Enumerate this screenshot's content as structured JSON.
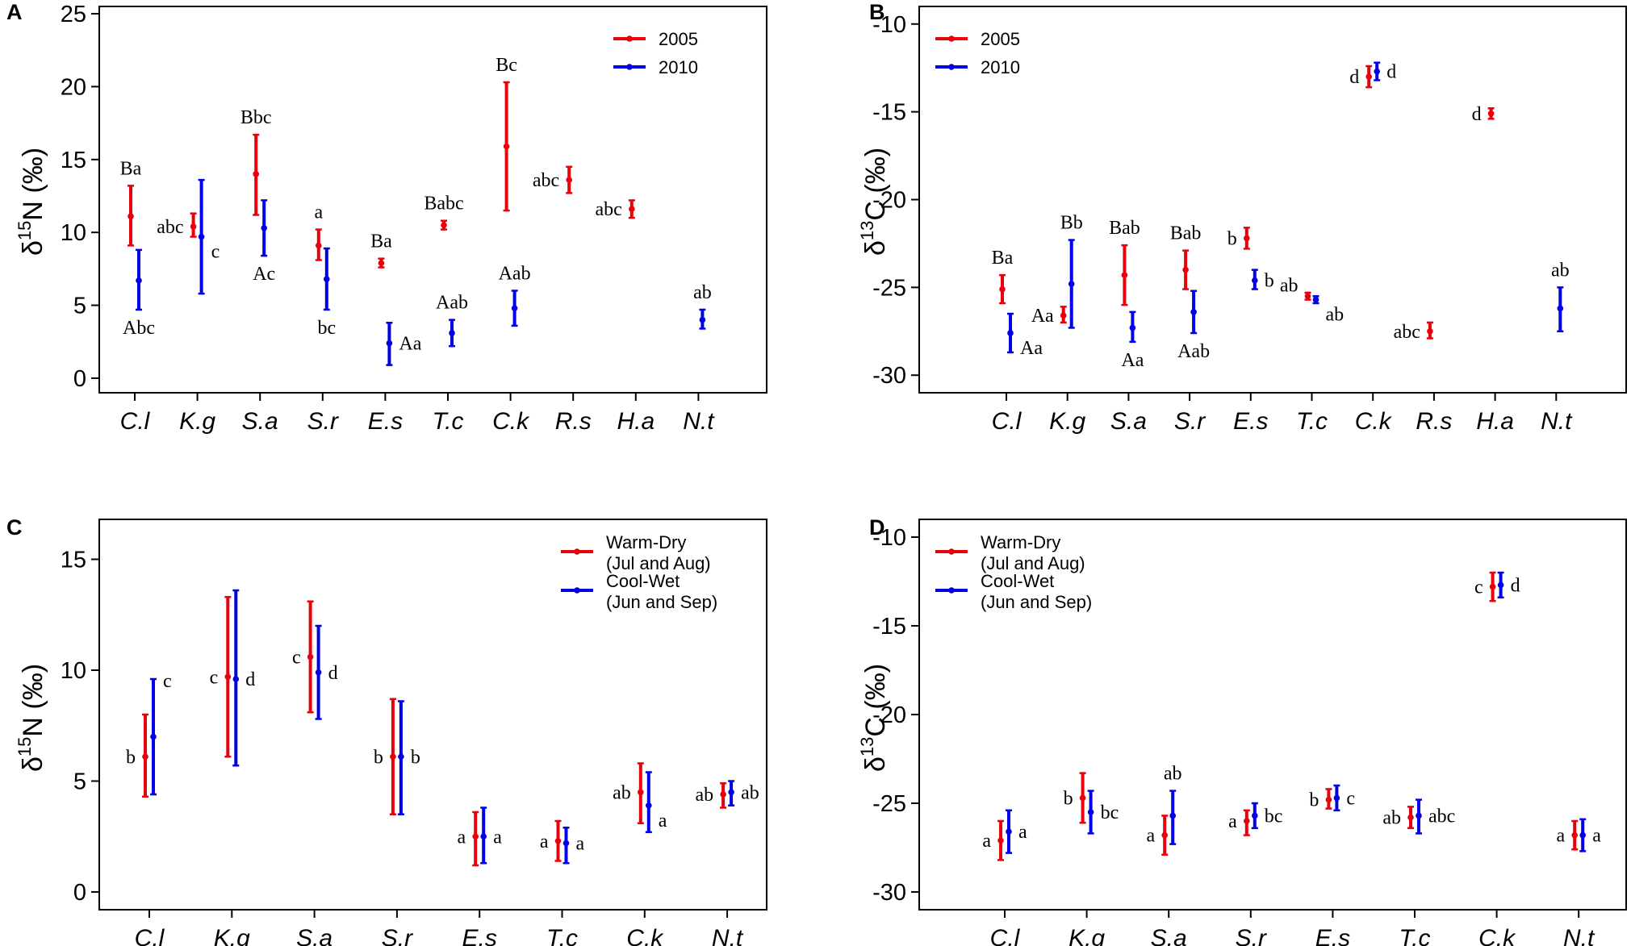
{
  "chart_data": [
    {
      "panel": "A",
      "type": "errorbar",
      "ylabel": "δ15N (‰)",
      "ylabel_parts": {
        "pre": "δ",
        "sup": "15",
        "post": "N (‰)"
      },
      "ylim": [
        -1,
        25.5
      ],
      "yticks": [
        0,
        5,
        10,
        15,
        20,
        25
      ],
      "categories": [
        "C.l",
        "K.g",
        "S.a",
        "S.r",
        "E.s",
        "T.c",
        "C.k",
        "R.s",
        "H.a",
        "N.t"
      ],
      "legend": {
        "position": "top-right"
      },
      "series": [
        {
          "name": "2005",
          "color": "#e8000b",
          "points": [
            {
              "cat": 0,
              "mean": 11.1,
              "lo": 9.1,
              "hi": 13.2,
              "label": "Ba",
              "lpos": "above"
            },
            {
              "cat": 1,
              "mean": 10.4,
              "lo": 9.7,
              "hi": 11.3,
              "label": "abc",
              "lpos": "left"
            },
            {
              "cat": 2,
              "mean": 14.0,
              "lo": 11.2,
              "hi": 16.7,
              "label": "Bbc",
              "lpos": "above"
            },
            {
              "cat": 3,
              "mean": 9.1,
              "lo": 8.1,
              "hi": 10.2,
              "label": "a",
              "lpos": "above"
            },
            {
              "cat": 4,
              "mean": 7.9,
              "lo": 7.6,
              "hi": 8.2,
              "label": "Ba",
              "lpos": "above"
            },
            {
              "cat": 5,
              "mean": 10.5,
              "lo": 10.2,
              "hi": 10.8,
              "label": "Babc",
              "lpos": "above"
            },
            {
              "cat": 6,
              "mean": 15.9,
              "lo": 11.5,
              "hi": 20.3,
              "label": "Bc",
              "lpos": "above"
            },
            {
              "cat": 7,
              "mean": 13.6,
              "lo": 12.7,
              "hi": 14.5,
              "label": "abc",
              "lpos": "left"
            },
            {
              "cat": 8,
              "mean": 11.6,
              "lo": 11.0,
              "hi": 12.2,
              "label": "abc",
              "lpos": "left"
            }
          ]
        },
        {
          "name": "2010",
          "color": "#0000e6",
          "points": [
            {
              "cat": 0,
              "mean": 6.7,
              "lo": 4.7,
              "hi": 8.8,
              "label": "Abc",
              "lpos": "below"
            },
            {
              "cat": 1,
              "mean": 9.7,
              "lo": 5.8,
              "hi": 13.6,
              "label": "c",
              "lpos": "right-low"
            },
            {
              "cat": 2,
              "mean": 10.3,
              "lo": 8.4,
              "hi": 12.2,
              "label": "Ac",
              "lpos": "below"
            },
            {
              "cat": 3,
              "mean": 6.8,
              "lo": 4.7,
              "hi": 8.9,
              "label": "bc",
              "lpos": "below"
            },
            {
              "cat": 4,
              "mean": 2.4,
              "lo": 0.9,
              "hi": 3.8,
              "label": "Aa",
              "lpos": "right"
            },
            {
              "cat": 5,
              "mean": 3.1,
              "lo": 2.2,
              "hi": 4.0,
              "label": "Aab",
              "lpos": "above"
            },
            {
              "cat": 6,
              "mean": 4.8,
              "lo": 3.6,
              "hi": 6.0,
              "label": "Aab",
              "lpos": "above"
            },
            {
              "cat": 9,
              "mean": 4.0,
              "lo": 3.4,
              "hi": 4.7,
              "label": "ab",
              "lpos": "above"
            }
          ]
        }
      ]
    },
    {
      "panel": "B",
      "type": "errorbar",
      "ylabel": "δ13C (‰)",
      "ylabel_parts": {
        "pre": "δ",
        "sup": "13",
        "post": "C (‰)"
      },
      "ylim": [
        -31,
        -9
      ],
      "yticks": [
        -10,
        -15,
        -20,
        -25,
        -30
      ],
      "categories": [
        "C.l",
        "K.g",
        "S.a",
        "S.r",
        "E.s",
        "T.c",
        "C.k",
        "R.s",
        "H.a",
        "N.t"
      ],
      "legend": {
        "position": "top-left"
      },
      "series": [
        {
          "name": "2005",
          "color": "#e8000b",
          "points": [
            {
              "cat": 0,
              "mean": -25.1,
              "lo": -25.9,
              "hi": -24.3,
              "label": "Ba",
              "lpos": "above"
            },
            {
              "cat": 1,
              "mean": -26.6,
              "lo": -27.0,
              "hi": -26.1,
              "label": "Aa",
              "lpos": "left"
            },
            {
              "cat": 2,
              "mean": -24.3,
              "lo": -26.0,
              "hi": -22.6,
              "label": "Bab",
              "lpos": "above"
            },
            {
              "cat": 3,
              "mean": -24.0,
              "lo": -25.1,
              "hi": -22.9,
              "label": "Bab",
              "lpos": "above"
            },
            {
              "cat": 4,
              "mean": -22.2,
              "lo": -22.8,
              "hi": -21.6,
              "label": "b",
              "lpos": "left"
            },
            {
              "cat": 5,
              "mean": -25.5,
              "lo": -25.7,
              "hi": -25.3,
              "label": "ab",
              "lpos": "left-high"
            },
            {
              "cat": 6,
              "mean": -13.0,
              "lo": -13.6,
              "hi": -12.4,
              "label": "d",
              "lpos": "left"
            },
            {
              "cat": 7,
              "mean": -27.5,
              "lo": -27.9,
              "hi": -27.0,
              "label": "abc",
              "lpos": "left"
            },
            {
              "cat": 8,
              "mean": -15.1,
              "lo": -15.4,
              "hi": -14.8,
              "label": "d",
              "lpos": "left"
            }
          ]
        },
        {
          "name": "2010",
          "color": "#0000e6",
          "points": [
            {
              "cat": 0,
              "mean": -27.6,
              "lo": -28.7,
              "hi": -26.5,
              "label": "Aa",
              "lpos": "right-low"
            },
            {
              "cat": 1,
              "mean": -24.8,
              "lo": -27.3,
              "hi": -22.3,
              "label": "Bb",
              "lpos": "above"
            },
            {
              "cat": 2,
              "mean": -27.3,
              "lo": -28.1,
              "hi": -26.4,
              "label": "Aa",
              "lpos": "below"
            },
            {
              "cat": 3,
              "mean": -26.4,
              "lo": -27.6,
              "hi": -25.2,
              "label": "Aab",
              "lpos": "below"
            },
            {
              "cat": 4,
              "mean": -24.6,
              "lo": -25.1,
              "hi": -24.0,
              "label": "b",
              "lpos": "right"
            },
            {
              "cat": 5,
              "mean": -25.7,
              "lo": -25.9,
              "hi": -25.5,
              "label": "ab",
              "lpos": "right-low"
            },
            {
              "cat": 6,
              "mean": -12.7,
              "lo": -13.2,
              "hi": -12.2,
              "label": "d",
              "lpos": "right"
            },
            {
              "cat": 9,
              "mean": -26.2,
              "lo": -27.5,
              "hi": -25.0,
              "label": "ab",
              "lpos": "above"
            }
          ]
        }
      ]
    },
    {
      "panel": "C",
      "type": "errorbar",
      "ylabel": "δ15N (‰)",
      "ylabel_parts": {
        "pre": "δ",
        "sup": "15",
        "post": "N (‰)"
      },
      "ylim": [
        -0.8,
        16.8
      ],
      "yticks": [
        0,
        5,
        10,
        15
      ],
      "categories": [
        "C.l",
        "K.g",
        "S.a",
        "S.r",
        "E.s",
        "T.c",
        "C.k",
        "N.t"
      ],
      "legend": {
        "position": "top-right"
      },
      "series": [
        {
          "name": "Warm-Dry (Jul and Aug)",
          "name_lines": [
            "Warm-Dry",
            "(Jul and Aug)"
          ],
          "color": "#e8000b",
          "points": [
            {
              "cat": 0,
              "mean": 6.1,
              "lo": 4.3,
              "hi": 8.0,
              "label": "b",
              "lpos": "left"
            },
            {
              "cat": 1,
              "mean": 9.7,
              "lo": 6.1,
              "hi": 13.3,
              "label": "c",
              "lpos": "left"
            },
            {
              "cat": 2,
              "mean": 10.6,
              "lo": 8.1,
              "hi": 13.1,
              "label": "c",
              "lpos": "left"
            },
            {
              "cat": 3,
              "mean": 6.1,
              "lo": 3.5,
              "hi": 8.7,
              "label": "b",
              "lpos": "left"
            },
            {
              "cat": 4,
              "mean": 2.5,
              "lo": 1.2,
              "hi": 3.6,
              "label": "a",
              "lpos": "left"
            },
            {
              "cat": 5,
              "mean": 2.3,
              "lo": 1.4,
              "hi": 3.2,
              "label": "a",
              "lpos": "left"
            },
            {
              "cat": 6,
              "mean": 4.5,
              "lo": 3.1,
              "hi": 5.8,
              "label": "ab",
              "lpos": "left"
            },
            {
              "cat": 7,
              "mean": 4.4,
              "lo": 3.8,
              "hi": 4.9,
              "label": "ab",
              "lpos": "left"
            }
          ]
        },
        {
          "name": "Cool-Wet (Jun and Sep)",
          "name_lines": [
            "Cool-Wet",
            "(Jun and Sep)"
          ],
          "color": "#0000e6",
          "points": [
            {
              "cat": 0,
              "mean": 7.0,
              "lo": 4.4,
              "hi": 9.6,
              "label": "c",
              "lpos": "right-high"
            },
            {
              "cat": 1,
              "mean": 9.6,
              "lo": 5.7,
              "hi": 13.6,
              "label": "d",
              "lpos": "right"
            },
            {
              "cat": 2,
              "mean": 9.9,
              "lo": 7.8,
              "hi": 12.0,
              "label": "d",
              "lpos": "right"
            },
            {
              "cat": 3,
              "mean": 6.1,
              "lo": 3.5,
              "hi": 8.6,
              "label": "b",
              "lpos": "right"
            },
            {
              "cat": 4,
              "mean": 2.5,
              "lo": 1.3,
              "hi": 3.8,
              "label": "a",
              "lpos": "right"
            },
            {
              "cat": 5,
              "mean": 2.2,
              "lo": 1.3,
              "hi": 2.9,
              "label": "a",
              "lpos": "right"
            },
            {
              "cat": 6,
              "mean": 3.9,
              "lo": 2.7,
              "hi": 5.4,
              "label": "a",
              "lpos": "right-low"
            },
            {
              "cat": 7,
              "mean": 4.5,
              "lo": 3.9,
              "hi": 5.0,
              "label": "ab",
              "lpos": "right"
            }
          ]
        }
      ]
    },
    {
      "panel": "D",
      "type": "errorbar",
      "ylabel": "δ13C (‰)",
      "ylabel_parts": {
        "pre": "δ",
        "sup": "13",
        "post": "C (‰)"
      },
      "ylim": [
        -31,
        -9
      ],
      "yticks": [
        -10,
        -15,
        -20,
        -25,
        -30
      ],
      "categories": [
        "C.l",
        "K.g",
        "S.a",
        "S.r",
        "E.s",
        "T.c",
        "C.k",
        "N.t"
      ],
      "legend": {
        "position": "top-left"
      },
      "series": [
        {
          "name": "Warm-Dry (Jul and Aug)",
          "name_lines": [
            "Warm-Dry",
            "(Jul and Aug)"
          ],
          "color": "#e8000b",
          "points": [
            {
              "cat": 0,
              "mean": -27.1,
              "lo": -28.2,
              "hi": -26.0,
              "label": "a",
              "lpos": "left"
            },
            {
              "cat": 1,
              "mean": -24.7,
              "lo": -26.1,
              "hi": -23.3,
              "label": "b",
              "lpos": "left"
            },
            {
              "cat": 2,
              "mean": -26.8,
              "lo": -27.9,
              "hi": -25.7,
              "label": "a",
              "lpos": "left"
            },
            {
              "cat": 3,
              "mean": -26.0,
              "lo": -26.8,
              "hi": -25.4,
              "label": "a",
              "lpos": "left"
            },
            {
              "cat": 4,
              "mean": -24.8,
              "lo": -25.3,
              "hi": -24.2,
              "label": "b",
              "lpos": "left"
            },
            {
              "cat": 5,
              "mean": -25.8,
              "lo": -26.4,
              "hi": -25.2,
              "label": "ab",
              "lpos": "left"
            },
            {
              "cat": 6,
              "mean": -12.8,
              "lo": -13.6,
              "hi": -12.0,
              "label": "c",
              "lpos": "left"
            },
            {
              "cat": 7,
              "mean": -26.8,
              "lo": -27.6,
              "hi": -26.0,
              "label": "a",
              "lpos": "left"
            }
          ]
        },
        {
          "name": "Cool-Wet (Jun and Sep)",
          "name_lines": [
            "Cool-Wet",
            "(Jun and Sep)"
          ],
          "color": "#0000e6",
          "points": [
            {
              "cat": 0,
              "mean": -26.6,
              "lo": -27.8,
              "hi": -25.4,
              "label": "a",
              "lpos": "right"
            },
            {
              "cat": 1,
              "mean": -25.5,
              "lo": -26.7,
              "hi": -24.3,
              "label": "bc",
              "lpos": "right"
            },
            {
              "cat": 2,
              "mean": -25.7,
              "lo": -27.3,
              "hi": -24.3,
              "label": "ab",
              "lpos": "above"
            },
            {
              "cat": 3,
              "mean": -25.7,
              "lo": -26.4,
              "hi": -25.0,
              "label": "bc",
              "lpos": "right"
            },
            {
              "cat": 4,
              "mean": -24.7,
              "lo": -25.4,
              "hi": -24.0,
              "label": "c",
              "lpos": "right"
            },
            {
              "cat": 5,
              "mean": -25.7,
              "lo": -26.7,
              "hi": -24.8,
              "label": "abc",
              "lpos": "right"
            },
            {
              "cat": 6,
              "mean": -12.7,
              "lo": -13.4,
              "hi": -12.0,
              "label": "d",
              "lpos": "right"
            },
            {
              "cat": 7,
              "mean": -26.8,
              "lo": -27.7,
              "hi": -25.9,
              "label": "a",
              "lpos": "right"
            }
          ]
        }
      ]
    }
  ]
}
